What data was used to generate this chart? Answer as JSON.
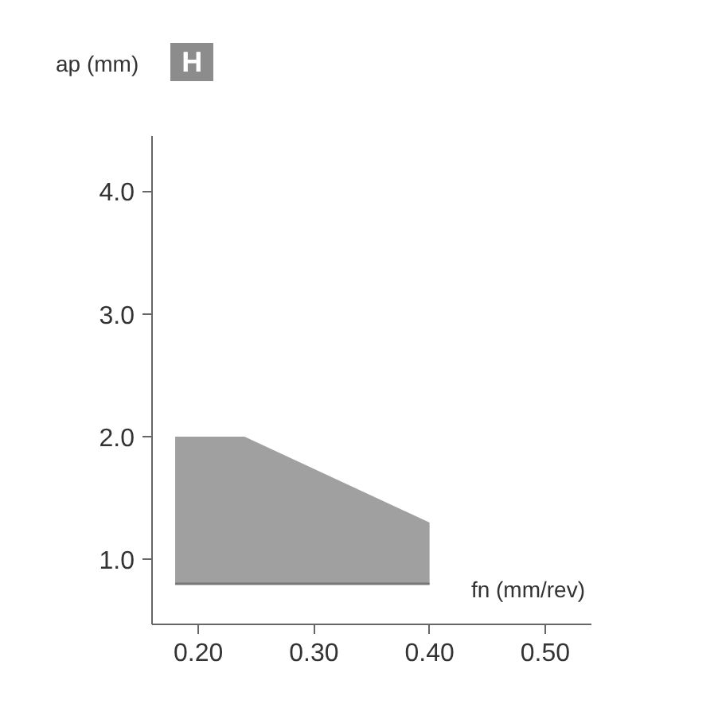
{
  "chart_data": {
    "type": "line",
    "xlabel": "fn (mm/rev)",
    "ylabel": "ap (mm)",
    "annotations": [
      "H"
    ],
    "series": [
      {
        "color": "#777777",
        "x": [
          0.18,
          0.24,
          0.4
        ],
        "values": [
          0.8,
          0.8,
          0.8
        ],
        "lower": [
          0.8,
          0.8,
          0.8
        ],
        "upper": [
          2.0,
          2.0,
          1.3
        ]
      }
    ],
    "xlim": [
      0.16,
      0.54
    ],
    "ylim": [
      0.47,
      4.45
    ],
    "xticks": [
      {
        "value": 0.2,
        "label": "0.20"
      },
      {
        "value": 0.3,
        "label": "0.30"
      },
      {
        "value": 0.4,
        "label": "0.40"
      },
      {
        "value": 0.5,
        "label": "0.50"
      }
    ],
    "yticks": [
      {
        "value": 1.0,
        "label": "1.0"
      },
      {
        "value": 2.0,
        "label": "2.0"
      },
      {
        "value": 3.0,
        "label": "3.0"
      },
      {
        "value": 4.0,
        "label": "4.0"
      }
    ],
    "grid": false
  }
}
